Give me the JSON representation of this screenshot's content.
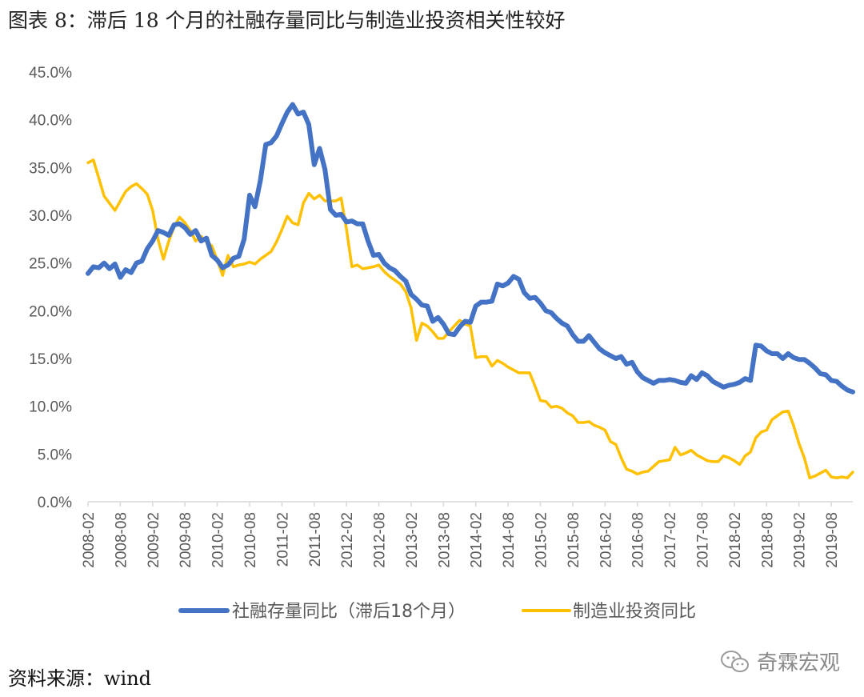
{
  "title": "图表 8：滞后 18 个月的社融存量同比与制造业投资相关性较好",
  "source": "资料来源：wind",
  "watermark": "奇霖宏观",
  "chart_data": {
    "type": "line",
    "ylim": [
      0,
      45
    ],
    "yticks": [
      "0.0%",
      "5.0%",
      "10.0%",
      "15.0%",
      "20.0%",
      "25.0%",
      "30.0%",
      "35.0%",
      "40.0%",
      "45.0%"
    ],
    "xticks": [
      "2008-02",
      "2008-08",
      "2009-02",
      "2009-08",
      "2010-02",
      "2010-08",
      "2011-02",
      "2011-08",
      "2012-02",
      "2012-08",
      "2013-02",
      "2013-08",
      "2014-02",
      "2014-08",
      "2015-02",
      "2015-08",
      "2016-02",
      "2016-08",
      "2017-02",
      "2017-08",
      "2018-02",
      "2018-08",
      "2019-02",
      "2019-08"
    ],
    "legend_position": "bottom",
    "series": [
      {
        "name": "社融存量同比（滞后18个月）",
        "color": "#4472C4",
        "x": [
          0,
          1,
          2,
          3,
          4,
          5,
          6,
          7,
          8,
          9,
          10,
          11,
          12,
          13,
          14,
          15,
          16,
          17,
          18,
          19,
          20,
          21,
          22,
          23,
          24,
          25,
          26,
          27,
          28,
          29,
          30,
          31,
          32,
          33,
          34,
          35,
          36,
          37,
          38,
          39,
          40,
          41,
          42,
          43,
          44,
          45,
          46,
          47,
          48,
          49,
          50,
          51,
          52,
          53,
          54,
          55,
          56,
          57,
          58,
          59,
          60,
          61,
          62,
          63,
          64,
          65,
          66,
          67,
          68,
          69,
          70,
          71,
          72,
          73,
          74,
          75,
          76,
          77,
          78,
          79,
          80,
          81,
          82,
          83,
          84,
          85,
          86,
          87,
          88,
          89,
          90,
          91,
          92,
          93,
          94,
          95,
          96,
          97,
          98,
          99,
          100,
          101,
          102,
          103,
          104,
          105,
          106,
          107,
          108,
          109,
          110,
          111,
          112,
          113,
          114,
          115,
          116,
          117,
          118,
          119,
          120,
          121,
          122,
          123,
          124,
          125,
          126,
          127,
          128,
          129,
          130,
          131,
          132,
          133,
          134,
          135,
          136,
          137,
          138,
          139,
          140,
          141,
          142
        ],
        "values": [
          23.9,
          24.6,
          24.5,
          25.0,
          24.4,
          24.9,
          23.5,
          24.3,
          24.0,
          25.0,
          25.2,
          26.5,
          27.3,
          28.4,
          28.2,
          27.9,
          29.0,
          29.1,
          28.7,
          28.0,
          28.4,
          27.3,
          27.6,
          25.8,
          25.3,
          24.5,
          24.8,
          25.5,
          25.7,
          27.5,
          32.1,
          30.9,
          33.6,
          37.4,
          37.6,
          38.3,
          39.6,
          40.8,
          41.6,
          40.6,
          40.8,
          39.5,
          35.3,
          37.0,
          34.8,
          30.6,
          30.0,
          30.1,
          29.3,
          29.4,
          29.1,
          29.1,
          27.3,
          25.8,
          25.9,
          25.0,
          24.5,
          24.2,
          23.6,
          23.1,
          21.7,
          21.2,
          20.6,
          20.5,
          18.9,
          19.3,
          18.6,
          17.6,
          17.5,
          18.3,
          18.9,
          18.8,
          20.5,
          20.9,
          20.9,
          21.0,
          22.8,
          22.6,
          22.9,
          23.6,
          23.3,
          21.9,
          21.3,
          21.4,
          20.8,
          20.0,
          19.8,
          19.2,
          18.7,
          18.4,
          17.5,
          16.8,
          16.8,
          17.4,
          16.7,
          16.0,
          15.6,
          15.3,
          15.0,
          15.2,
          14.4,
          14.6,
          13.6,
          13.0,
          12.7,
          12.4,
          12.7,
          12.7,
          12.8,
          12.7,
          12.5,
          12.4,
          13.2,
          12.8,
          13.5,
          13.2,
          12.6,
          12.3,
          12.0,
          12.2,
          12.3,
          12.5,
          12.9,
          12.7,
          16.4,
          16.3,
          15.8,
          15.5,
          15.5,
          15.0,
          15.5,
          15.1,
          14.9,
          14.9,
          14.5,
          14.0,
          13.4,
          13.3,
          12.7,
          12.6,
          12.1,
          11.7,
          11.5
        ]
      },
      {
        "name": "制造业投资同比",
        "color": "#FFC000",
        "x": [
          0,
          1,
          3,
          5,
          6,
          7,
          8,
          9,
          10,
          11,
          12,
          13,
          14,
          15,
          16,
          17,
          18,
          19,
          20,
          21,
          22,
          23,
          24,
          25,
          26,
          27,
          28,
          29,
          30,
          31,
          32,
          33,
          34,
          35,
          36,
          37,
          38,
          39,
          40,
          41,
          42,
          43,
          44,
          45,
          46,
          47,
          48,
          49,
          50,
          51,
          52,
          53,
          54,
          55,
          56,
          57,
          58,
          59,
          60,
          61,
          62,
          63,
          64,
          65,
          66,
          67,
          68,
          69,
          70,
          71,
          72,
          73,
          74,
          75,
          76,
          77,
          78,
          79,
          80,
          81,
          82,
          83,
          84,
          85,
          86,
          87,
          88,
          89,
          90,
          91,
          92,
          93,
          94,
          95,
          96,
          97,
          98,
          99,
          100,
          101,
          102,
          103,
          104,
          105,
          106,
          107,
          108,
          109,
          110,
          111,
          112,
          113,
          114,
          115,
          116,
          117,
          118,
          119,
          120,
          121,
          122,
          123,
          124,
          125,
          126,
          127,
          128,
          129,
          130,
          131,
          132,
          133,
          134,
          135,
          136,
          137,
          138,
          139,
          140,
          141,
          142
        ],
        "values": [
          35.5,
          35.8,
          32.0,
          30.5,
          31.5,
          32.5,
          33.0,
          33.3,
          32.8,
          32.2,
          30.5,
          27.5,
          25.4,
          27.3,
          28.8,
          29.8,
          29.2,
          28.4,
          27.3,
          27.8,
          27.2,
          26.8,
          25.3,
          23.7,
          25.8,
          24.6,
          24.8,
          24.9,
          25.1,
          24.9,
          25.4,
          25.8,
          26.2,
          27.2,
          28.5,
          29.9,
          29.2,
          29.0,
          31.3,
          32.3,
          31.7,
          32.1,
          31.5,
          31.5,
          31.5,
          31.8,
          28.5,
          24.6,
          24.8,
          24.4,
          24.5,
          24.6,
          24.8,
          24.1,
          23.6,
          23.2,
          22.8,
          22.0,
          20.3,
          16.9,
          18.7,
          18.4,
          17.8,
          17.1,
          17.1,
          17.8,
          18.4,
          19.0,
          18.6,
          18.4,
          15.1,
          15.2,
          15.2,
          14.2,
          14.8,
          14.5,
          14.1,
          13.8,
          13.5,
          13.5,
          13.5,
          12.1,
          10.6,
          10.5,
          9.9,
          10.0,
          9.8,
          9.3,
          9.0,
          8.3,
          8.3,
          8.4,
          8.0,
          7.8,
          7.5,
          6.3,
          6.0,
          4.6,
          3.4,
          3.2,
          2.9,
          3.1,
          3.2,
          3.7,
          4.2,
          4.3,
          4.4,
          5.7,
          4.9,
          5.1,
          5.4,
          4.9,
          4.6,
          4.3,
          4.2,
          4.2,
          4.8,
          4.6,
          4.3,
          3.9,
          4.8,
          5.2,
          6.7,
          7.3,
          7.5,
          8.6,
          9.0,
          9.4,
          9.5,
          8.0,
          6.1,
          4.6,
          2.5,
          2.7,
          3.0,
          3.3,
          2.6,
          2.5,
          2.6,
          2.5,
          3.1
        ]
      }
    ]
  }
}
